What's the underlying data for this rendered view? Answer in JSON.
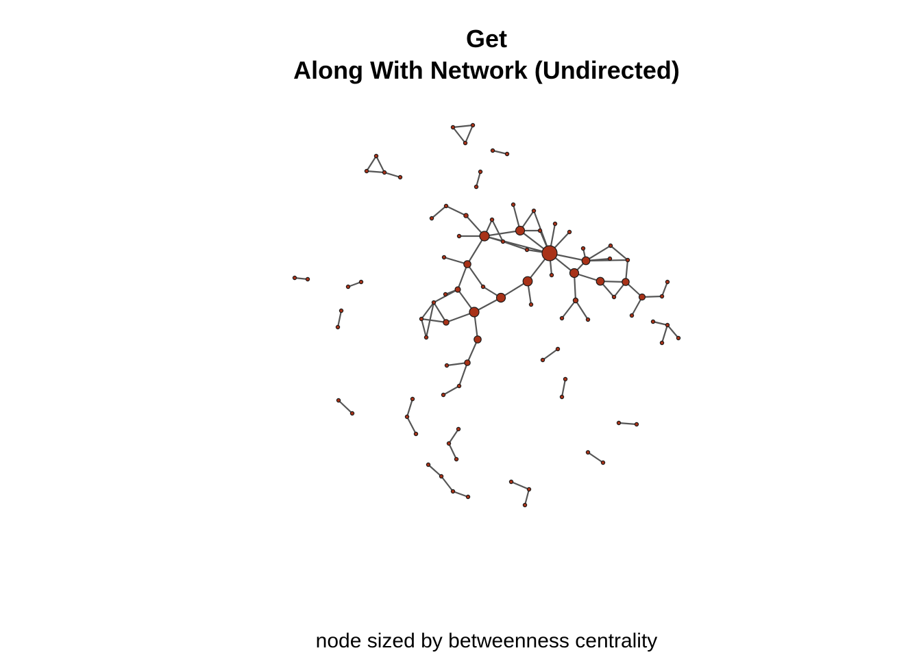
{
  "title": {
    "line1": "Get",
    "line2": "Along With Network (Undirected)"
  },
  "caption": "node sized by betweenness centrality",
  "colors": {
    "node_fill": "#a83218",
    "node_stroke": "#1a1a1a",
    "edge": "#555555",
    "background": "#ffffff"
  },
  "graph": {
    "type": "network",
    "directed": false
  }
}
